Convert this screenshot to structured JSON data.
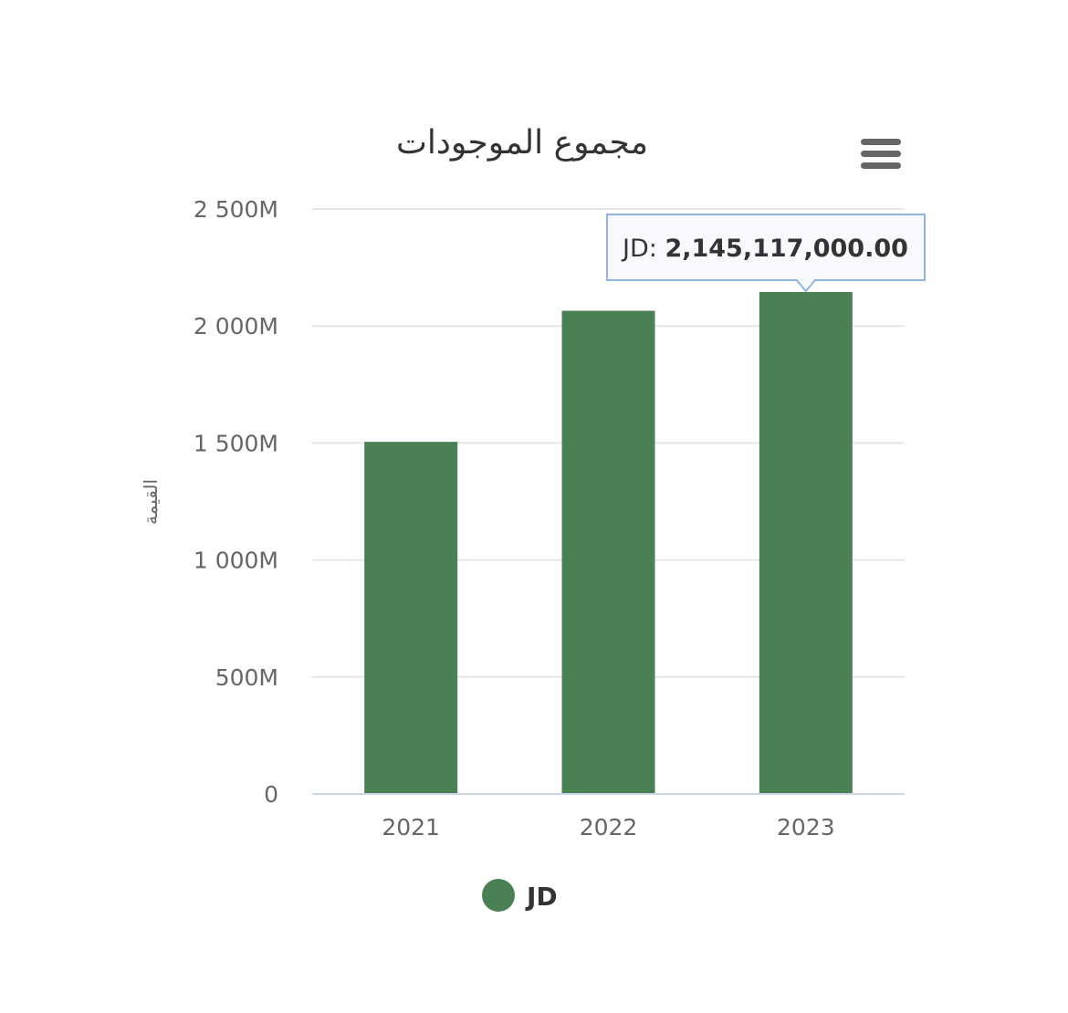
{
  "chart_data": {
    "type": "bar",
    "title": "مجموع الموجودات",
    "ylabel": "القيمة",
    "xlabel": "",
    "categories": [
      "2021",
      "2022",
      "2023"
    ],
    "series": [
      {
        "name": "JD",
        "color": "#4a8154",
        "values": [
          1505000000,
          2065000000,
          2145117000
        ]
      }
    ],
    "ylim": [
      0,
      2500000000
    ],
    "yticks": [
      0,
      500000000,
      1000000000,
      1500000000,
      2000000000,
      2500000000
    ],
    "ytick_labels": [
      "0",
      "500M",
      "1 000M",
      "1 500M",
      "2 000M",
      "2 500M"
    ],
    "grid": true,
    "legend": {
      "placement": "bottom-center",
      "label": "JD"
    },
    "tooltip": {
      "category": "2023",
      "series_label": "JD: ",
      "value_text": "2,145,117,000.00"
    }
  },
  "icons": {
    "menu": "hamburger-menu-icon"
  }
}
